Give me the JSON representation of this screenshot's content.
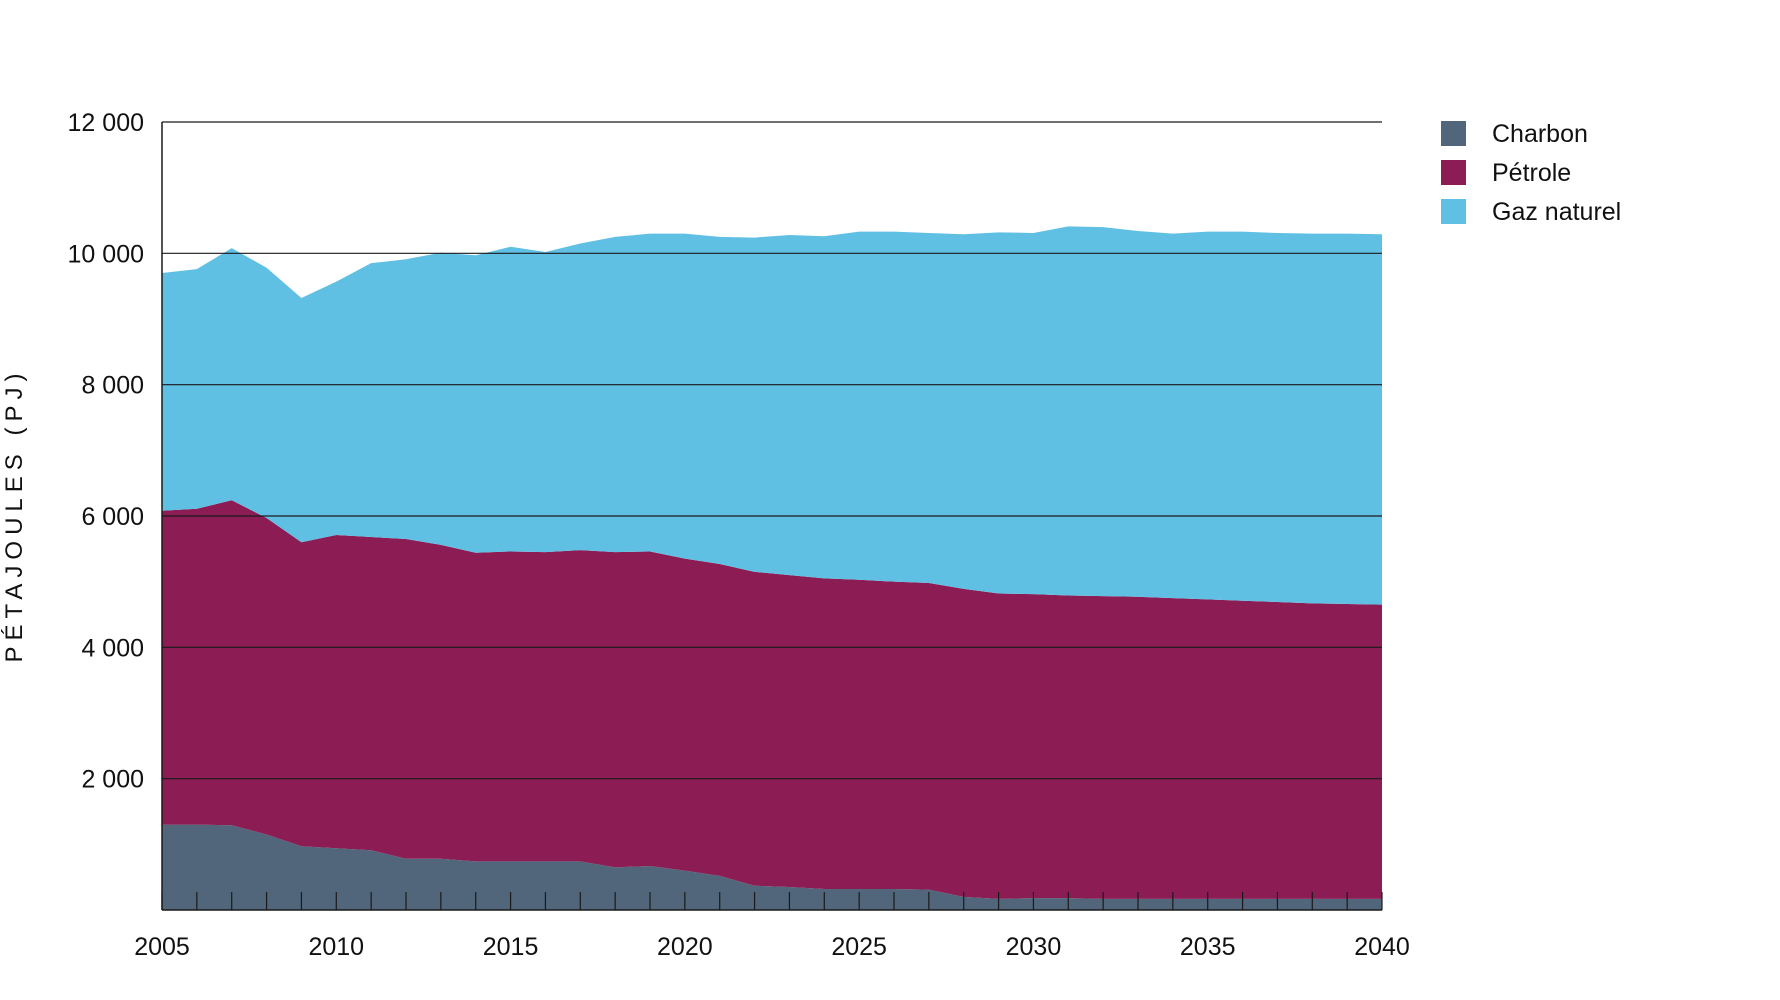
{
  "chart_data": {
    "type": "area",
    "stacked": true,
    "title": "",
    "xlabel": "",
    "ylabel": "PÉTAJOULES (PJ)",
    "xlim": [
      2005,
      2040
    ],
    "ylim": [
      0,
      12000
    ],
    "x_ticks": [
      "2005",
      "2010",
      "2015",
      "2020",
      "2025",
      "2030",
      "2035",
      "2040"
    ],
    "y_ticks": [
      "2 000",
      "4 000",
      "6 000",
      "8 000",
      "10 000",
      "12 000"
    ],
    "y_tick_values": [
      2000,
      4000,
      6000,
      8000,
      10000,
      12000
    ],
    "grid": "horizontal",
    "legend_position": "top-right",
    "x": [
      2005,
      2006,
      2007,
      2008,
      2009,
      2010,
      2011,
      2012,
      2013,
      2014,
      2015,
      2016,
      2017,
      2018,
      2019,
      2020,
      2021,
      2022,
      2023,
      2024,
      2025,
      2026,
      2027,
      2028,
      2029,
      2030,
      2031,
      2032,
      2033,
      2034,
      2035,
      2036,
      2037,
      2038,
      2039,
      2040
    ],
    "series": [
      {
        "name": "Charbon",
        "color": "#51667b",
        "values": [
          1300,
          1300,
          1290,
          1150,
          970,
          940,
          910,
          780,
          780,
          740,
          740,
          740,
          740,
          650,
          670,
          600,
          520,
          370,
          350,
          320,
          320,
          320,
          310,
          200,
          170,
          180,
          180,
          170,
          170,
          170,
          170,
          170,
          170,
          170,
          170,
          170
        ]
      },
      {
        "name": "Pétrole",
        "color": "#8b1c54",
        "values": [
          4780,
          4810,
          4950,
          4820,
          4630,
          4770,
          4770,
          4870,
          4780,
          4700,
          4720,
          4710,
          4740,
          4800,
          4790,
          4750,
          4750,
          4780,
          4750,
          4730,
          4710,
          4680,
          4670,
          4690,
          4650,
          4630,
          4610,
          4610,
          4600,
          4580,
          4560,
          4540,
          4520,
          4500,
          4490,
          4480
        ]
      },
      {
        "name": "Gaz naturel",
        "color": "#60c0e4",
        "values": [
          3620,
          3650,
          3840,
          3810,
          3720,
          3860,
          4170,
          4260,
          4450,
          4530,
          4640,
          4570,
          4670,
          4800,
          4840,
          4950,
          4980,
          5090,
          5180,
          5210,
          5300,
          5330,
          5330,
          5400,
          5500,
          5500,
          5620,
          5620,
          5570,
          5550,
          5600,
          5620,
          5620,
          5630,
          5640,
          5640
        ]
      }
    ]
  }
}
